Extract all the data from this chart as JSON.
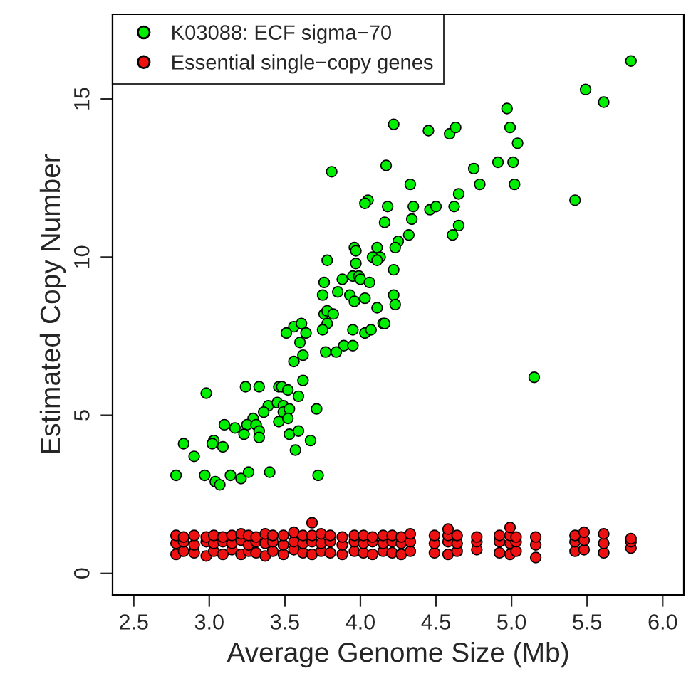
{
  "chart_data": {
    "type": "scatter",
    "xlabel": "Average Genome Size (Mb)",
    "ylabel": "Estimated Copy Number",
    "xlim": [
      2.36,
      6.14
    ],
    "ylim": [
      -0.68,
      17.68
    ],
    "xticks": [
      2.5,
      {
        "value": 3,
        "label": "3.0"
      },
      3.5,
      {
        "value": 4,
        "label": "4.0"
      },
      4.5,
      {
        "value": 5,
        "label": "5.0"
      },
      5.5,
      {
        "value": 6,
        "label": "6.0"
      }
    ],
    "yticks": [
      0,
      5,
      10,
      15
    ],
    "legend": "top left",
    "marker": "circle",
    "grid": false,
    "series": [
      {
        "name": "K03088: ECF sigma−70",
        "color": "#00ee00",
        "x": [
          5.79,
          5.49,
          5.61,
          4.97,
          4.22,
          4.45,
          4.59,
          4.63,
          4.99,
          5.04,
          3.81,
          4.17,
          4.75,
          4.91,
          5.01,
          4.33,
          4.79,
          5.02,
          5.42,
          4.05,
          4.03,
          4.65,
          4.18,
          4.35,
          4.46,
          4.5,
          4.62,
          4.16,
          4.34,
          4.65,
          4.32,
          4.25,
          4.61,
          3.96,
          3.97,
          4.11,
          4.13,
          4.08,
          4.11,
          4.23,
          4.22,
          3.78,
          3.97,
          3.76,
          3.88,
          3.95,
          3.99,
          4.0,
          4.06,
          3.85,
          3.93,
          3.96,
          4.03,
          3.75,
          4.22,
          4.23,
          4.11,
          3.76,
          3.78,
          3.82,
          3.78,
          4.15,
          4.16,
          3.56,
          3.61,
          3.51,
          3.64,
          3.75,
          3.95,
          4.03,
          4.07,
          3.6,
          3.89,
          3.95,
          3.84,
          3.77,
          3.62,
          3.56,
          3.62,
          2.98,
          3.24,
          3.33,
          3.46,
          3.48,
          3.52,
          3.59,
          3.39,
          3.36,
          3.45,
          3.49,
          3.49,
          3.53,
          3.71,
          3.29,
          3.25,
          3.31,
          3.33,
          3.46,
          3.52,
          3.1,
          3.17,
          3.23,
          3.33,
          3.53,
          3.59,
          2.83,
          3.03,
          3.02,
          3.09,
          2.9,
          3.57,
          3.67,
          2.78,
          2.97,
          3.04,
          3.07,
          3.14,
          3.21,
          3.26,
          3.4,
          3.72,
          5.15
        ],
        "values": [
          16.2,
          15.3,
          14.9,
          14.7,
          14.2,
          14.0,
          13.9,
          14.1,
          14.1,
          13.6,
          12.7,
          12.9,
          12.8,
          13.0,
          13.0,
          12.3,
          12.3,
          12.3,
          11.8,
          11.8,
          11.7,
          12.0,
          11.6,
          11.6,
          11.5,
          11.6,
          11.6,
          11.1,
          11.2,
          11.0,
          10.7,
          10.5,
          10.7,
          10.3,
          10.2,
          10.3,
          10.0,
          10.0,
          9.9,
          10.3,
          9.6,
          9.9,
          9.8,
          9.2,
          9.3,
          9.4,
          9.4,
          9.3,
          9.2,
          8.9,
          8.8,
          8.6,
          8.7,
          8.8,
          8.8,
          8.5,
          8.4,
          8.2,
          8.3,
          8.2,
          7.9,
          7.9,
          7.9,
          7.8,
          7.9,
          7.6,
          7.6,
          7.7,
          7.7,
          7.6,
          7.7,
          7.3,
          7.2,
          7.2,
          7.0,
          7.0,
          6.9,
          6.7,
          6.1,
          5.7,
          5.9,
          5.9,
          5.9,
          5.9,
          5.8,
          5.6,
          5.3,
          5.1,
          5.4,
          5.3,
          5.1,
          5.2,
          5.2,
          4.9,
          4.7,
          4.7,
          4.5,
          4.8,
          4.9,
          4.7,
          4.6,
          4.4,
          4.3,
          4.4,
          4.5,
          4.1,
          4.2,
          4.1,
          4.0,
          3.7,
          3.9,
          4.2,
          3.1,
          3.1,
          2.9,
          2.8,
          3.1,
          3.0,
          3.2,
          3.2,
          3.1,
          6.2
        ]
      },
      {
        "name": "Essential single−copy genes",
        "color": "#ee1111",
        "x": [
          2.78,
          2.78,
          2.78,
          2.83,
          2.83,
          2.83,
          2.9,
          2.9,
          2.9,
          2.98,
          2.98,
          2.98,
          3.03,
          3.03,
          3.03,
          3.09,
          3.09,
          3.09,
          3.15,
          3.15,
          3.15,
          3.21,
          3.21,
          3.21,
          3.26,
          3.26,
          3.26,
          3.31,
          3.31,
          3.31,
          3.37,
          3.37,
          3.37,
          3.42,
          3.42,
          3.42,
          3.49,
          3.49,
          3.49,
          3.56,
          3.56,
          3.56,
          3.62,
          3.62,
          3.62,
          3.68,
          3.68,
          3.68,
          3.68,
          3.74,
          3.74,
          3.74,
          3.8,
          3.8,
          3.8,
          3.88,
          3.88,
          3.88,
          3.96,
          3.96,
          3.96,
          4.02,
          4.02,
          4.02,
          4.08,
          4.08,
          4.08,
          4.15,
          4.15,
          4.15,
          4.21,
          4.21,
          4.21,
          4.27,
          4.27,
          4.27,
          4.33,
          4.33,
          4.33,
          4.49,
          4.49,
          4.49,
          4.58,
          4.58,
          4.58,
          4.58,
          4.64,
          4.64,
          4.64,
          4.77,
          4.77,
          4.77,
          4.92,
          4.92,
          4.92,
          4.99,
          4.99,
          4.99,
          4.99,
          5.03,
          5.03,
          5.03,
          5.16,
          5.16,
          5.16,
          5.42,
          5.42,
          5.42,
          5.48,
          5.48,
          5.48,
          5.61,
          5.61,
          5.61,
          5.79,
          5.79,
          5.79
        ],
        "values": [
          0.6,
          0.95,
          1.2,
          0.7,
          1.0,
          1.15,
          0.65,
          0.9,
          1.2,
          0.55,
          1.0,
          1.15,
          0.7,
          0.95,
          1.2,
          0.6,
          1.0,
          1.15,
          0.75,
          0.95,
          1.2,
          0.6,
          1.05,
          1.25,
          0.7,
          0.9,
          1.2,
          0.65,
          1.0,
          1.15,
          0.55,
          0.95,
          1.25,
          0.7,
          1.0,
          1.2,
          0.6,
          0.9,
          1.2,
          0.75,
          1.0,
          1.3,
          0.65,
          0.95,
          1.2,
          0.6,
          1.0,
          1.2,
          1.6,
          0.7,
          0.95,
          1.25,
          0.65,
          1.0,
          1.2,
          0.6,
          0.9,
          1.15,
          0.7,
          1.0,
          1.2,
          0.65,
          0.95,
          1.2,
          0.6,
          1.0,
          1.15,
          0.7,
          0.95,
          1.2,
          0.65,
          1.0,
          1.2,
          0.6,
          0.95,
          1.15,
          0.7,
          1.0,
          1.25,
          0.65,
          0.95,
          1.2,
          0.6,
          1.0,
          1.2,
          1.4,
          0.7,
          0.95,
          1.2,
          0.75,
          1.0,
          1.15,
          0.65,
          1.0,
          1.2,
          0.6,
          0.95,
          1.2,
          1.45,
          0.7,
          1.0,
          1.15,
          0.5,
          0.9,
          1.15,
          0.7,
          1.0,
          1.2,
          0.75,
          1.05,
          1.3,
          0.65,
          0.95,
          1.25,
          0.8,
          1.0,
          1.1
        ]
      }
    ]
  }
}
